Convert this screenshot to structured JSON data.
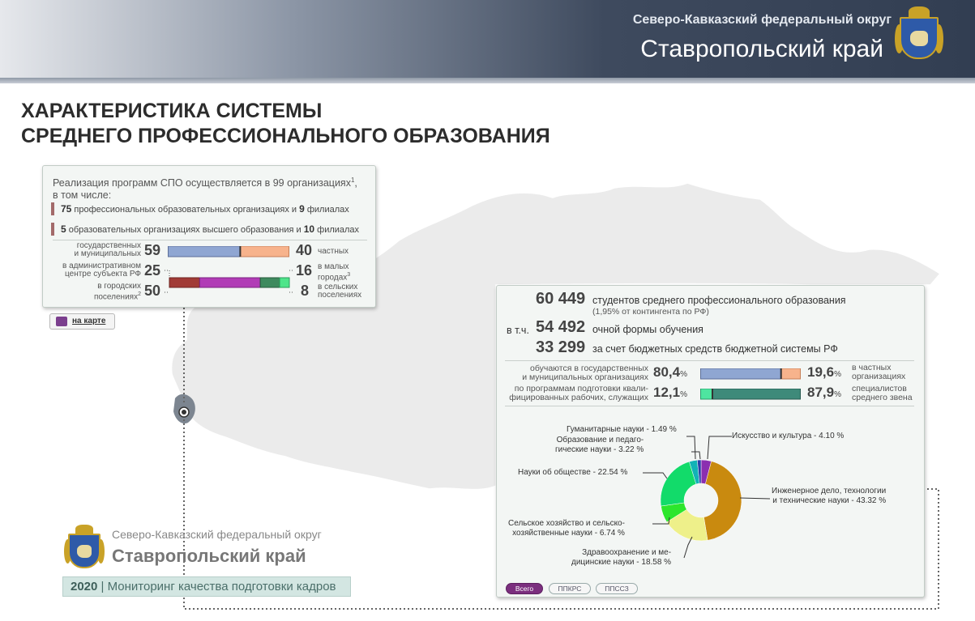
{
  "header": {
    "district": "Северо-Кавказский федеральный округ",
    "region": "Ставропольский край"
  },
  "page_title": {
    "line1": "ХАРАКТЕРИСТИКА СИСТЕМЫ",
    "line2": "СРЕДНЕГО ПРОФЕССИОНАЛЬНОГО ОБРАЗОВАНИЯ"
  },
  "org_panel": {
    "intro_line1": "Реализация программ СПО осуществляется в 99 организациях",
    "intro_sup": "1",
    "intro_line2": "в том числе:",
    "row1": {
      "n1": "75",
      "t1": "профессиональных образовательных организациях и",
      "n2": "9",
      "t2": "филиалах"
    },
    "row2": {
      "n1": "5",
      "t1": "образовательных организациях высшего образования и",
      "n2": "10",
      "t2": "филиалах"
    },
    "ownership": {
      "public_label_l1": "государственных",
      "public_label_l2": "и муниципальных",
      "public_value": "59",
      "private_value": "40",
      "private_label": "частных",
      "public_share": 0.596
    },
    "location": {
      "admin_label_l1": "в административном",
      "admin_label_l2": "центре субъекта РФ",
      "admin_value": "25",
      "urban_label_l1": "в городских",
      "urban_label_l2": "поселениях",
      "urban_sup": "2",
      "urban_value": "50",
      "small_value": "16",
      "small_label_l1": "в малых",
      "small_label_l2": "городах",
      "small_sup": "3",
      "rural_value": "8",
      "rural_label_l1": "в сельских",
      "rural_label_l2": "поселениях",
      "shares": [
        25,
        50,
        16,
        8
      ]
    }
  },
  "map_button": {
    "label": "на карте"
  },
  "students_panel": {
    "total_value": "60 449",
    "total_label": "студентов среднего профессионального образования",
    "total_note": "(1,95% от контингента по РФ)",
    "fulltime_prefix": "в т.ч.",
    "fulltime_value": "54 492",
    "fulltime_label": "очной формы обучения",
    "budget_value": "33 299",
    "budget_label": "за счет бюджетных средств бюджетной системы РФ",
    "ownership": {
      "left_label_l1": "обучаются в государственных",
      "left_label_l2": "и муниципальных организациях",
      "left_value": "80,4",
      "right_value": "19,6",
      "pct": "%",
      "right_label_l1": "в частных",
      "right_label_l2": "организациях",
      "left_share": 80.4
    },
    "programs": {
      "left_label_l1": "по программам подготовки квали-",
      "left_label_l2": "фицированных рабочих, служащих",
      "left_value": "12,1",
      "right_value": "87,9",
      "pct": "%",
      "right_label_l1": "специалистов",
      "right_label_l2": "среднего звена",
      "left_share": 12.1
    },
    "donut_labels": {
      "humanities": "Гуманитарные науки - 1.49 %",
      "education_l1": "Образование и педаго-",
      "education_l2": "гические науки - 3.22 %",
      "arts": "Искусство и культура - 4.10 %",
      "society": "Науки об обществе - 22.54 %",
      "engineering_l1": "Инженерное дело, технологии",
      "engineering_l2": "и технические науки - 43.32 %",
      "agriculture_l1": "Сельское хозяйство и сельско-",
      "agriculture_l2": "хозяйственные науки - 6.74 %",
      "health_l1": "Здравоохранение и ме-",
      "health_l2": "дицинские науки - 18.58 %"
    },
    "tabs": [
      "Всего",
      "ППКРС",
      "ППССЗ"
    ]
  },
  "chart_data": {
    "type": "pie",
    "categories": [
      "Искусство и культура",
      "Инженерное дело, технологии и технические науки",
      "Здравоохранение и медицинские науки",
      "Сельское хозяйство и сельскохозяйственные науки",
      "Науки об обществе",
      "Образование и педагогические науки",
      "Гуманитарные науки"
    ],
    "values": [
      4.1,
      43.32,
      18.58,
      6.74,
      22.54,
      3.22,
      1.49
    ],
    "colors": [
      "#8b2fb0",
      "#c98a0f",
      "#eef08a",
      "#2ce62c",
      "#12db6a",
      "#12b3b6",
      "#2a3fa8"
    ]
  },
  "footer": {
    "district": "Северо-Кавказский федеральный округ",
    "region": "Ставропольский край",
    "year": "2020",
    "separator": "|",
    "subtitle": "Мониторинг качества подготовки кадров"
  }
}
